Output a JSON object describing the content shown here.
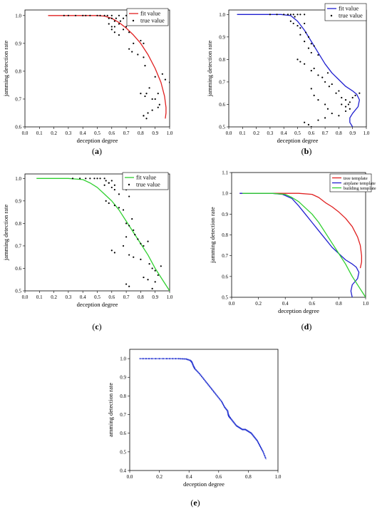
{
  "chart_data": [
    {
      "id": "a",
      "type": "line",
      "caption": "a",
      "xlabel": "deception degree",
      "ylabel": "jamming detection rate",
      "xlim": [
        0.0,
        1.0
      ],
      "ylim": [
        0.6,
        1.02
      ],
      "xticks": [
        "0.0",
        "0.1",
        "0.2",
        "0.3",
        "0.4",
        "0.5",
        "0.6",
        "0.7",
        "0.8",
        "0.9",
        "1.0"
      ],
      "yticks": [
        "0.6",
        "0.7",
        "0.8",
        "0.9",
        "1.0"
      ],
      "xtick_values": [
        0.0,
        0.1,
        0.2,
        0.3,
        0.4,
        0.5,
        0.6,
        0.7,
        0.8,
        0.9,
        1.0
      ],
      "ytick_values": [
        0.6,
        0.7,
        0.8,
        0.9,
        1.0
      ],
      "legend_position": "top-right",
      "series": [
        {
          "name": "fit value",
          "kind": "line",
          "color": "#e02020",
          "x": [
            0.16,
            0.3,
            0.4,
            0.5,
            0.55,
            0.6,
            0.65,
            0.7,
            0.75,
            0.8,
            0.85,
            0.9,
            0.94,
            0.965,
            0.975,
            0.975,
            0.97
          ],
          "y": [
            1.0,
            1.0,
            1.0,
            1.0,
            0.998,
            0.99,
            0.975,
            0.955,
            0.93,
            0.9,
            0.86,
            0.81,
            0.76,
            0.71,
            0.67,
            0.65,
            0.63
          ]
        },
        {
          "name": "true value",
          "kind": "scatter",
          "color": "#000000",
          "x": [
            0.27,
            0.3,
            0.35,
            0.4,
            0.42,
            0.45,
            0.5,
            0.52,
            0.55,
            0.57,
            0.58,
            0.6,
            0.6,
            0.62,
            0.63,
            0.65,
            0.66,
            0.68,
            0.7,
            0.72,
            0.58,
            0.6,
            0.62,
            0.65,
            0.68,
            0.7,
            0.72,
            0.6,
            0.62,
            0.65,
            0.72,
            0.74,
            0.75,
            0.78,
            0.8,
            0.82,
            0.82,
            0.83,
            0.84,
            0.86,
            0.88,
            0.9,
            0.92,
            0.93,
            0.95,
            0.97,
            1.0,
            0.8,
            0.82,
            0.85,
            0.9,
            0.92,
            0.88,
            0.84,
            0.82,
            0.83
          ],
          "y": [
            1.0,
            1.0,
            1.0,
            1.0,
            1.0,
            1.0,
            1.0,
            1.0,
            1.0,
            1.0,
            0.99,
            1.0,
            0.99,
            0.98,
            0.99,
            1.0,
            0.98,
            0.99,
            1.0,
            0.99,
            0.97,
            0.96,
            0.96,
            0.97,
            0.95,
            0.96,
            0.94,
            0.95,
            0.94,
            0.93,
            0.88,
            0.87,
            0.9,
            0.86,
            0.91,
            0.9,
            0.85,
            0.82,
            0.72,
            0.74,
            0.7,
            0.78,
            0.72,
            0.68,
            0.79,
            0.77,
            0.76,
            0.72,
            0.64,
            0.65,
            0.7,
            0.67,
            0.66,
            0.63,
            0.64,
            0.71
          ]
        }
      ]
    },
    {
      "id": "b",
      "type": "line",
      "caption": "b",
      "xlabel": "deception degree",
      "ylabel": "jamming detection rate",
      "xlim": [
        0.0,
        1.0
      ],
      "ylim": [
        0.5,
        1.02
      ],
      "xticks": [
        "0.0",
        "0.1",
        "0.2",
        "0.3",
        "0.4",
        "0.5",
        "0.6",
        "0.7",
        "0.8",
        "0.9",
        "1.0"
      ],
      "yticks": [
        "0.5",
        "0.6",
        "0.7",
        "0.8",
        "0.9",
        "1.0"
      ],
      "xtick_values": [
        0.0,
        0.1,
        0.2,
        0.3,
        0.4,
        0.5,
        0.6,
        0.7,
        0.8,
        0.9,
        1.0
      ],
      "ytick_values": [
        0.5,
        0.6,
        0.7,
        0.8,
        0.9,
        1.0
      ],
      "legend_position": "top-right",
      "series": [
        {
          "name": "fit value",
          "kind": "line",
          "color": "#2020d0",
          "x": [
            0.06,
            0.2,
            0.3,
            0.38,
            0.45,
            0.5,
            0.55,
            0.6,
            0.65,
            0.7,
            0.75,
            0.8,
            0.85,
            0.9,
            0.93,
            0.95,
            0.94,
            0.9,
            0.88,
            0.88,
            0.9
          ],
          "y": [
            1.0,
            1.0,
            1.0,
            1.0,
            0.995,
            0.97,
            0.93,
            0.88,
            0.83,
            0.78,
            0.74,
            0.71,
            0.68,
            0.66,
            0.645,
            0.62,
            0.59,
            0.56,
            0.54,
            0.52,
            0.5
          ]
        },
        {
          "name": "true value",
          "kind": "scatter",
          "color": "#000000",
          "x": [
            0.3,
            0.35,
            0.4,
            0.43,
            0.45,
            0.47,
            0.48,
            0.5,
            0.52,
            0.55,
            0.45,
            0.47,
            0.5,
            0.52,
            0.55,
            0.56,
            0.58,
            0.6,
            0.52,
            0.55,
            0.58,
            0.6,
            0.62,
            0.65,
            0.5,
            0.52,
            0.55,
            0.6,
            0.62,
            0.65,
            0.68,
            0.7,
            0.72,
            0.73,
            0.75,
            0.78,
            0.8,
            0.82,
            0.85,
            0.87,
            0.88,
            0.9,
            0.92,
            0.95,
            0.6,
            0.62,
            0.65,
            0.7,
            0.72,
            0.75,
            0.8,
            0.85,
            0.88,
            0.55,
            0.58,
            0.6,
            0.65,
            0.7,
            0.82,
            0.85
          ],
          "y": [
            1.0,
            1.0,
            1.0,
            1.0,
            1.0,
            1.0,
            0.99,
            1.0,
            1.0,
            1.0,
            0.97,
            0.96,
            0.95,
            0.94,
            0.96,
            0.92,
            0.9,
            0.87,
            0.91,
            0.88,
            0.85,
            0.83,
            0.86,
            0.82,
            0.8,
            0.79,
            0.78,
            0.75,
            0.76,
            0.73,
            0.72,
            0.7,
            0.74,
            0.68,
            0.69,
            0.65,
            0.66,
            0.63,
            0.62,
            0.6,
            0.61,
            0.63,
            0.64,
            0.65,
            0.67,
            0.64,
            0.62,
            0.6,
            0.58,
            0.56,
            0.55,
            0.57,
            0.58,
            0.52,
            0.51,
            0.5,
            0.53,
            0.54,
            0.6,
            0.59
          ]
        }
      ]
    },
    {
      "id": "c",
      "type": "line",
      "caption": "c",
      "xlabel": "deception degree",
      "ylabel": "jamming detection rate",
      "xlim": [
        0.0,
        1.0
      ],
      "ylim": [
        0.5,
        1.02
      ],
      "xticks": [
        "0.0",
        "0.1",
        "0.2",
        "0.3",
        "0.4",
        "0.5",
        "0.6",
        "0.7",
        "0.8",
        "0.9",
        "1.0"
      ],
      "yticks": [
        "0.5",
        "0.6",
        "0.7",
        "0.8",
        "0.9",
        "1.0"
      ],
      "xtick_values": [
        0.0,
        0.1,
        0.2,
        0.3,
        0.4,
        0.5,
        0.6,
        0.7,
        0.8,
        0.9,
        1.0
      ],
      "ytick_values": [
        0.5,
        0.6,
        0.7,
        0.8,
        0.9,
        1.0
      ],
      "legend_position": "top-right",
      "series": [
        {
          "name": "fit value",
          "kind": "line",
          "color": "#30d030",
          "x": [
            0.08,
            0.2,
            0.3,
            0.4,
            0.45,
            0.5,
            0.55,
            0.6,
            0.65,
            0.7,
            0.75,
            0.8,
            0.85,
            0.9,
            0.95,
            1.0
          ],
          "y": [
            1.0,
            1.0,
            1.0,
            0.995,
            0.98,
            0.96,
            0.93,
            0.9,
            0.86,
            0.81,
            0.76,
            0.71,
            0.66,
            0.6,
            0.55,
            0.5
          ]
        },
        {
          "name": "true value",
          "kind": "scatter",
          "color": "#000000",
          "x": [
            0.33,
            0.38,
            0.42,
            0.45,
            0.48,
            0.5,
            0.52,
            0.55,
            0.56,
            0.58,
            0.6,
            0.62,
            0.55,
            0.58,
            0.6,
            0.62,
            0.65,
            0.68,
            0.7,
            0.72,
            0.56,
            0.58,
            0.62,
            0.65,
            0.68,
            0.7,
            0.72,
            0.74,
            0.75,
            0.76,
            0.78,
            0.8,
            0.6,
            0.62,
            0.68,
            0.7,
            0.72,
            0.75,
            0.8,
            0.82,
            0.85,
            0.86,
            0.88,
            0.9,
            0.92,
            0.94,
            0.7,
            0.72,
            0.82,
            0.85,
            0.88,
            0.9
          ],
          "y": [
            1.0,
            1.0,
            1.0,
            1.0,
            1.0,
            1.0,
            1.0,
            1.0,
            0.99,
            0.98,
            0.99,
            0.97,
            0.97,
            0.98,
            0.96,
            0.95,
            0.93,
            0.96,
            0.95,
            0.92,
            0.9,
            0.89,
            0.88,
            0.87,
            0.86,
            0.8,
            0.79,
            0.82,
            0.77,
            0.75,
            0.73,
            0.71,
            0.68,
            0.67,
            0.7,
            0.74,
            0.66,
            0.65,
            0.64,
            0.7,
            0.72,
            0.62,
            0.6,
            0.59,
            0.57,
            0.61,
            0.53,
            0.52,
            0.56,
            0.55,
            0.51,
            0.54
          ]
        }
      ]
    },
    {
      "id": "d",
      "type": "line",
      "caption": "d",
      "xlabel": "deception degree",
      "ylabel": "jamming detection rate",
      "xlim": [
        0.0,
        1.0
      ],
      "ylim": [
        0.5,
        1.1
      ],
      "xticks": [
        "0.0",
        "0.2",
        "0.4",
        "0.6",
        "0.8",
        "1.0"
      ],
      "yticks": [
        "0.5",
        "0.6",
        "0.7",
        "0.8",
        "0.9",
        "1.0",
        "1.1"
      ],
      "xtick_values": [
        0.0,
        0.2,
        0.4,
        0.6,
        0.8,
        1.0
      ],
      "ytick_values": [
        0.5,
        0.6,
        0.7,
        0.8,
        0.9,
        1.0,
        1.1
      ],
      "legend_position": "top-right",
      "series": [
        {
          "name": "tree template",
          "kind": "line",
          "color": "#e02020",
          "x": [
            0.06,
            0.3,
            0.5,
            0.6,
            0.65,
            0.7,
            0.75,
            0.8,
            0.85,
            0.9,
            0.94,
            0.96,
            0.97,
            0.97,
            0.96
          ],
          "y": [
            1.0,
            1.0,
            1.0,
            0.995,
            0.98,
            0.955,
            0.935,
            0.91,
            0.88,
            0.84,
            0.79,
            0.75,
            0.7,
            0.67,
            0.64
          ]
        },
        {
          "name": "airplane template",
          "kind": "line",
          "color": "#2020d0",
          "x": [
            0.06,
            0.2,
            0.3,
            0.38,
            0.45,
            0.5,
            0.55,
            0.6,
            0.65,
            0.7,
            0.75,
            0.8,
            0.85,
            0.9,
            0.93,
            0.95,
            0.94,
            0.9,
            0.89,
            0.9
          ],
          "y": [
            1.0,
            1.0,
            1.0,
            0.995,
            0.975,
            0.94,
            0.9,
            0.86,
            0.82,
            0.78,
            0.74,
            0.71,
            0.68,
            0.66,
            0.645,
            0.62,
            0.59,
            0.56,
            0.53,
            0.5
          ]
        },
        {
          "name": "building template",
          "kind": "line",
          "color": "#30d030",
          "x": [
            0.08,
            0.2,
            0.3,
            0.4,
            0.45,
            0.5,
            0.55,
            0.6,
            0.65,
            0.7,
            0.75,
            0.8,
            0.85,
            0.9,
            0.95,
            1.0
          ],
          "y": [
            1.0,
            1.0,
            1.0,
            0.995,
            0.98,
            0.96,
            0.93,
            0.9,
            0.86,
            0.81,
            0.76,
            0.71,
            0.66,
            0.6,
            0.55,
            0.5
          ]
        }
      ]
    },
    {
      "id": "e",
      "type": "line",
      "caption": "e",
      "xlabel": "deception degree",
      "ylabel": "amming detection rate",
      "xlim": [
        0.0,
        1.0
      ],
      "ylim": [
        0.4,
        1.05
      ],
      "xticks": [
        "0.0",
        "0.2",
        "0.4",
        "0.6",
        "0.8",
        "1.0"
      ],
      "yticks": [
        "0.4",
        "0.5",
        "0.6",
        "0.7",
        "0.8",
        "0.9",
        "1.0"
      ],
      "xtick_values": [
        0.0,
        0.2,
        0.4,
        0.6,
        0.8,
        1.0
      ],
      "ytick_values": [
        0.4,
        0.5,
        0.6,
        0.7,
        0.8,
        0.9,
        1.0
      ],
      "legend_position": "none",
      "series": [
        {
          "kind": "line-markers",
          "color": "#1f2fd0",
          "x": [
            0.07,
            0.15,
            0.25,
            0.33,
            0.38,
            0.41,
            0.42,
            0.43,
            0.44,
            0.47,
            0.5,
            0.53,
            0.56,
            0.59,
            0.62,
            0.64,
            0.66,
            0.665,
            0.67,
            0.68,
            0.7,
            0.72,
            0.74,
            0.76,
            0.78,
            0.8,
            0.82,
            0.84,
            0.86,
            0.88,
            0.9,
            0.92
          ],
          "y": [
            1.0,
            1.0,
            1.0,
            1.0,
            0.998,
            0.99,
            0.98,
            0.96,
            0.945,
            0.92,
            0.89,
            0.86,
            0.83,
            0.8,
            0.77,
            0.74,
            0.72,
            0.7,
            0.69,
            0.68,
            0.66,
            0.64,
            0.63,
            0.62,
            0.62,
            0.61,
            0.6,
            0.58,
            0.56,
            0.53,
            0.5,
            0.46
          ]
        }
      ]
    }
  ]
}
